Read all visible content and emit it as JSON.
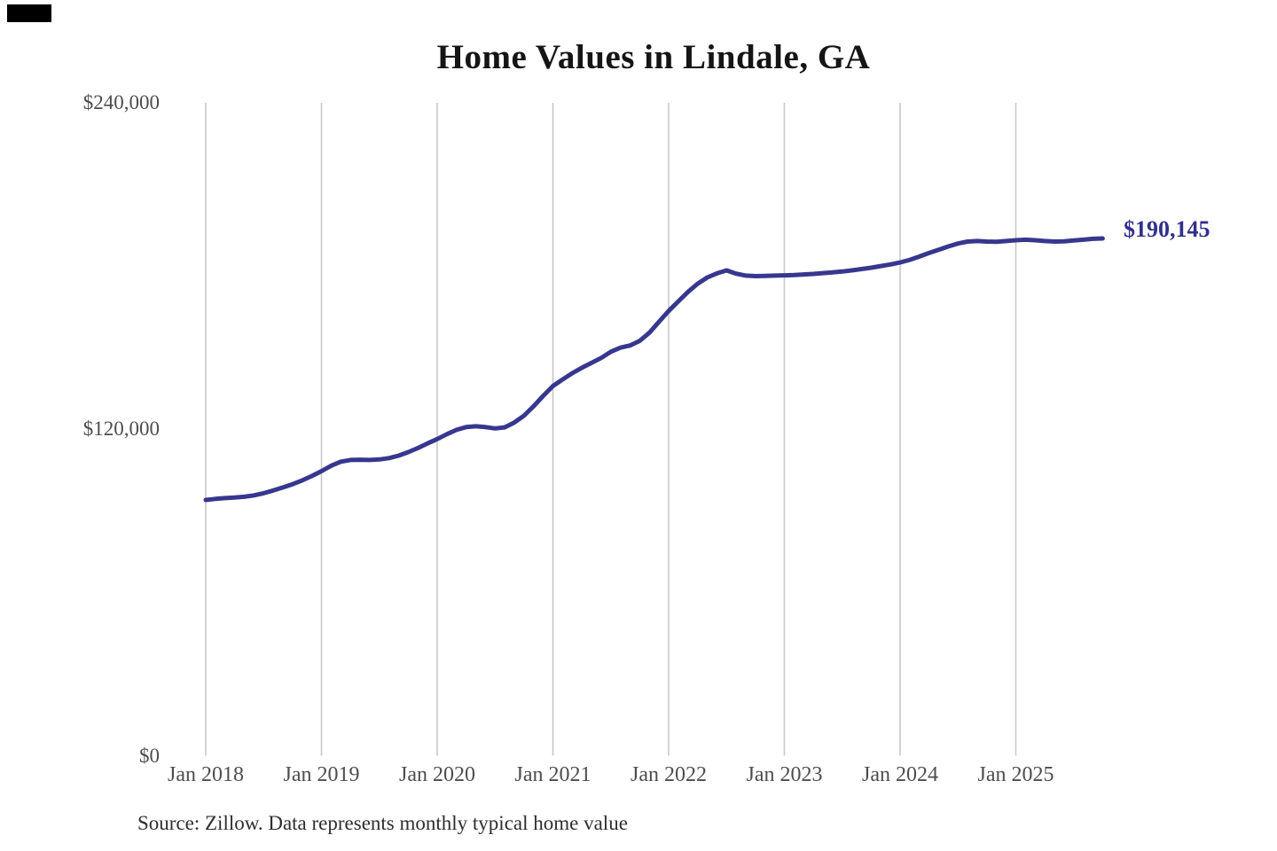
{
  "page": {
    "background": "#ffffff",
    "corner_mark_color": "#000000"
  },
  "source_note": "Source: Zillow. Data represents monthly typical home value",
  "chart_data": {
    "type": "line",
    "title": "Home Values in Lindale, GA",
    "xlabel": "",
    "ylabel": "",
    "ylim": [
      0,
      240000
    ],
    "grid": "vertical-only",
    "legend": "none",
    "gridline_color": "#c9c9c9",
    "line_color": "#37378f",
    "end_label": "$190,145",
    "end_label_color": "#31308c",
    "y_ticks": [
      240000,
      120000,
      0
    ],
    "y_tick_labels": [
      "$240,000",
      "$120,000",
      "$0"
    ],
    "x_tick_labels": [
      "Jan 2018",
      "Jan 2019",
      "Jan 2020",
      "Jan 2021",
      "Jan 2022",
      "Jan 2023",
      "Jan 2024",
      "Jan 2025"
    ],
    "series_name": "Monthly typical home value",
    "x": [
      "2018-01",
      "2018-02",
      "2018-03",
      "2018-04",
      "2018-05",
      "2018-06",
      "2018-07",
      "2018-08",
      "2018-09",
      "2018-10",
      "2018-11",
      "2018-12",
      "2019-01",
      "2019-02",
      "2019-03",
      "2019-04",
      "2019-05",
      "2019-06",
      "2019-07",
      "2019-08",
      "2019-09",
      "2019-10",
      "2019-11",
      "2019-12",
      "2020-01",
      "2020-02",
      "2020-03",
      "2020-04",
      "2020-05",
      "2020-06",
      "2020-07",
      "2020-08",
      "2020-09",
      "2020-10",
      "2020-11",
      "2020-12",
      "2021-01",
      "2021-02",
      "2021-03",
      "2021-04",
      "2021-05",
      "2021-06",
      "2021-07",
      "2021-08",
      "2021-09",
      "2021-10",
      "2021-11",
      "2021-12",
      "2022-01",
      "2022-02",
      "2022-03",
      "2022-04",
      "2022-05",
      "2022-06",
      "2022-07",
      "2022-08",
      "2022-09",
      "2022-10",
      "2022-11",
      "2022-12",
      "2023-01",
      "2023-02",
      "2023-03",
      "2023-04",
      "2023-05",
      "2023-06",
      "2023-07",
      "2023-08",
      "2023-09",
      "2023-10",
      "2023-11",
      "2023-12",
      "2024-01",
      "2024-02",
      "2024-03",
      "2024-04",
      "2024-05",
      "2024-06",
      "2024-07",
      "2024-08",
      "2024-09",
      "2024-10",
      "2024-11",
      "2024-12",
      "2025-01",
      "2025-02",
      "2025-03",
      "2025-04",
      "2025-05",
      "2025-06",
      "2025-07",
      "2025-08",
      "2025-09",
      "2025-10"
    ],
    "values": [
      94000,
      94400,
      94700,
      94900,
      95200,
      95700,
      96500,
      97500,
      98600,
      99800,
      101200,
      102800,
      104600,
      106600,
      108100,
      108700,
      108800,
      108700,
      108900,
      109400,
      110300,
      111600,
      113100,
      114800,
      116400,
      118200,
      119800,
      120800,
      121100,
      120800,
      120300,
      120700,
      122500,
      125000,
      128500,
      132300,
      135900,
      138300,
      140600,
      142600,
      144400,
      146200,
      148500,
      150000,
      150800,
      152500,
      155500,
      159500,
      163500,
      167000,
      170500,
      173500,
      175800,
      177300,
      178400,
      177200,
      176500,
      176300,
      176400,
      176500,
      176600,
      176700,
      176900,
      177100,
      177400,
      177700,
      178000,
      178400,
      178900,
      179400,
      180000,
      180600,
      181300,
      182300,
      183500,
      184800,
      186000,
      187200,
      188300,
      189000,
      189200,
      189000,
      188900,
      189200,
      189500,
      189700,
      189500,
      189200,
      189000,
      189100,
      189400,
      189700,
      190000,
      190145
    ]
  }
}
